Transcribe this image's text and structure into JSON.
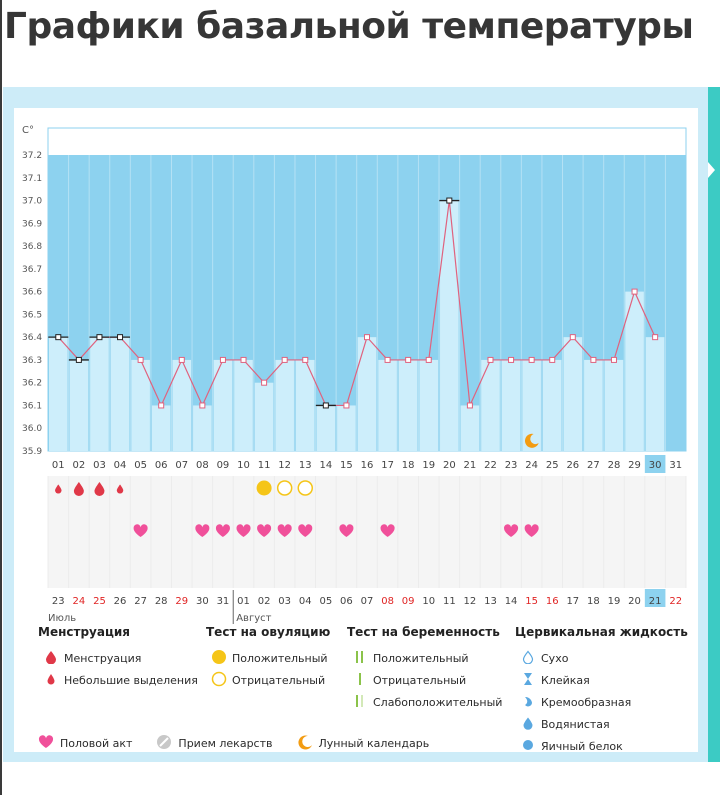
{
  "page": {
    "title": "Графики базальной температуры"
  },
  "colors": {
    "area": "#8dd2ef",
    "bar": "#cdeefb",
    "line": "#e0627e",
    "month_red": "#e02424",
    "pink": "#f0509a",
    "yellow": "#f5c518",
    "orange": "#f39c12",
    "drop": "#e03848",
    "teal": "#3ccbc4"
  },
  "chart_data": {
    "type": "line",
    "title": "Графики базальной температуры",
    "ylabel": "C°",
    "ylim": [
      35.9,
      37.2
    ],
    "y_ticks": [
      "37.2",
      "37.1",
      "37.0",
      "36.9",
      "36.8",
      "36.7",
      "36.6",
      "36.5",
      "36.4",
      "36.3",
      "36.2",
      "36.1",
      "36.0",
      "35.9"
    ],
    "days": [
      "01",
      "02",
      "03",
      "04",
      "05",
      "06",
      "07",
      "08",
      "09",
      "10",
      "11",
      "12",
      "13",
      "14",
      "15",
      "16",
      "17",
      "18",
      "19",
      "20",
      "21",
      "22",
      "23",
      "24",
      "25",
      "26",
      "27",
      "28",
      "29",
      "30",
      "31"
    ],
    "values": [
      36.4,
      36.3,
      36.4,
      36.4,
      36.3,
      36.1,
      36.3,
      36.1,
      36.3,
      36.3,
      36.2,
      36.3,
      36.3,
      36.1,
      36.1,
      36.4,
      36.3,
      36.3,
      36.3,
      37.0,
      36.1,
      36.3,
      36.3,
      36.3,
      36.3,
      36.4,
      36.3,
      36.3,
      36.6,
      36.4,
      null
    ],
    "black_markers": [
      1,
      2,
      3,
      4,
      14,
      20
    ],
    "highlighted_day": "30",
    "moon_day": "24",
    "menstruation": [
      {
        "day": "01",
        "size": "small"
      },
      {
        "day": "02",
        "size": "large"
      },
      {
        "day": "03",
        "size": "large"
      },
      {
        "day": "04",
        "size": "small"
      }
    ],
    "ovulation_test": [
      {
        "day": "11",
        "result": "positive"
      },
      {
        "day": "12",
        "result": "negative"
      },
      {
        "day": "13",
        "result": "negative"
      }
    ],
    "intercourse_days": [
      "05",
      "08",
      "09",
      "10",
      "11",
      "12",
      "13",
      "15",
      "17",
      "23",
      "24"
    ],
    "cycle_days": [
      "23",
      "24",
      "25",
      "26",
      "27",
      "28",
      "29",
      "30",
      "31",
      "01",
      "02",
      "03",
      "04",
      "05",
      "06",
      "07",
      "08",
      "09",
      "10",
      "11",
      "12",
      "13",
      "14",
      "15",
      "16",
      "17",
      "18",
      "19",
      "20",
      "21",
      "22"
    ],
    "red_cycle_days": [
      1,
      2,
      6,
      16,
      17,
      23,
      24,
      30
    ],
    "highlighted_cycle_index": 29,
    "month_labels": [
      {
        "label": "Июль"
      },
      {
        "label": "Август"
      }
    ]
  },
  "legend": {
    "menstruation": {
      "title": "Менструация",
      "items": [
        "Менструация",
        "Небольшие выделения"
      ]
    },
    "ovulation": {
      "title": "Тест на овуляцию",
      "items": [
        "Положительный",
        "Отрицательный"
      ]
    },
    "pregnancy": {
      "title": "Тест на беременность",
      "items": [
        "Положительный",
        "Отрицательный",
        "Слабоположительный"
      ]
    },
    "cervical": {
      "title": "Цервикальная жидкость",
      "items": [
        "Сухо",
        "Клейкая",
        "Кремообразная",
        "Водянистая",
        "Яичный белок"
      ]
    },
    "bottom": [
      "Половой акт",
      "Прием лекарств",
      "Лунный календарь"
    ]
  },
  "icons": {
    "drop": "drop-icon",
    "heart": "heart-icon",
    "circle": "circle-icon",
    "moon": "moon-icon",
    "pill": "pill-icon"
  }
}
